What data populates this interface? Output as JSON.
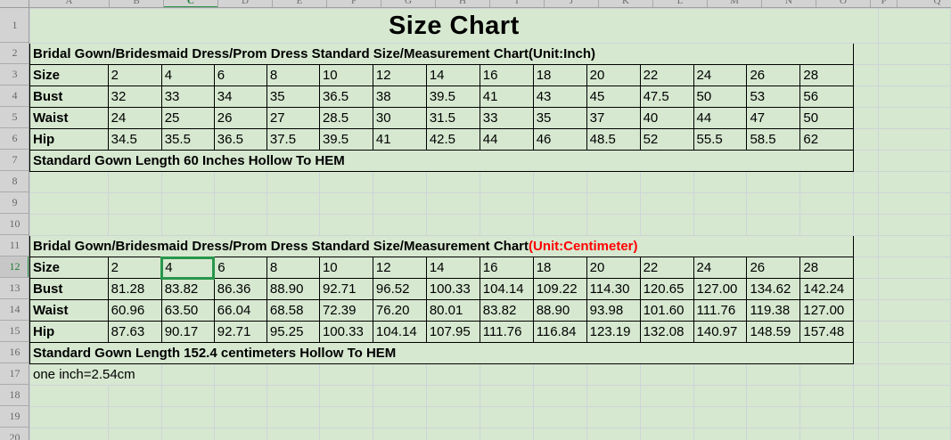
{
  "title": "Size Chart",
  "note": "one inch=2.54cm",
  "sheet": {
    "column_letters": [
      "A",
      "B",
      "C",
      "D",
      "E",
      "F",
      "G",
      "H",
      "I",
      "J",
      "K",
      "L",
      "M",
      "N",
      "O",
      "P",
      "Q"
    ],
    "row_numbers": [
      1,
      2,
      3,
      4,
      5,
      6,
      7,
      8,
      9,
      10,
      11,
      12,
      13,
      14,
      15,
      16,
      17,
      18,
      19,
      20
    ],
    "selected_cell": {
      "column": "C",
      "row": 12,
      "value": "4"
    }
  },
  "colors": {
    "sheet_background": "#d6e8d0",
    "selection_green": "#28964B",
    "unit_red": "#FF0000",
    "flag_green": "#2F9E44"
  },
  "inch_table": {
    "heading": "Bridal Gown/Bridesmaid Dress/Prom Dress Standard Size/Measurement Chart",
    "unit": "(Unit:Inch)",
    "rows": [
      {
        "label": "Size",
        "values": [
          "2",
          "4",
          "6",
          "8",
          "10",
          "12",
          "14",
          "16",
          "18",
          "20",
          "22",
          "24",
          "26",
          "28"
        ]
      },
      {
        "label": "Bust",
        "values": [
          "32",
          "33",
          "34",
          "35",
          "36.5",
          "38",
          "39.5",
          "41",
          "43",
          "45",
          "47.5",
          "50",
          "53",
          "56"
        ]
      },
      {
        "label": "Waist",
        "values": [
          "24",
          "25",
          "26",
          "27",
          "28.5",
          "30",
          "31.5",
          "33",
          "35",
          "37",
          "40",
          "44",
          "47",
          "50"
        ]
      },
      {
        "label": "Hip",
        "values": [
          "34.5",
          "35.5",
          "36.5",
          "37.5",
          "39.5",
          "41",
          "42.5",
          "44",
          "46",
          "48.5",
          "52",
          "55.5",
          "58.5",
          "62"
        ],
        "flagged_indices": [
          0,
          4,
          6,
          9,
          11,
          12
        ]
      }
    ],
    "footer": "Standard Gown Length 60 Inches Hollow To HEM"
  },
  "cm_table": {
    "heading": "Bridal Gown/Bridesmaid Dress/Prom Dress Standard Size/Measurement Chart",
    "unit": "(Unit:Centimeter)",
    "rows": [
      {
        "label": "Size",
        "values": [
          "2",
          "4",
          "6",
          "8",
          "10",
          "12",
          "14",
          "16",
          "18",
          "20",
          "22",
          "24",
          "26",
          "28"
        ]
      },
      {
        "label": "Bust",
        "values": [
          "81.28",
          "83.82",
          "86.36",
          "88.90",
          "92.71",
          "96.52",
          "100.33",
          "104.14",
          "109.22",
          "114.30",
          "120.65",
          "127.00",
          "134.62",
          "142.24"
        ]
      },
      {
        "label": "Waist",
        "values": [
          "60.96",
          "63.50",
          "66.04",
          "68.58",
          "72.39",
          "76.20",
          "80.01",
          "83.82",
          "88.90",
          "93.98",
          "101.60",
          "111.76",
          "119.38",
          "127.00"
        ]
      },
      {
        "label": "Hip",
        "values": [
          "87.63",
          "90.17",
          "92.71",
          "95.25",
          "100.33",
          "104.14",
          "107.95",
          "111.76",
          "116.84",
          "123.19",
          "132.08",
          "140.97",
          "148.59",
          "157.48"
        ]
      }
    ],
    "footer": "Standard Gown Length 152.4 centimeters Hollow To HEM"
  }
}
